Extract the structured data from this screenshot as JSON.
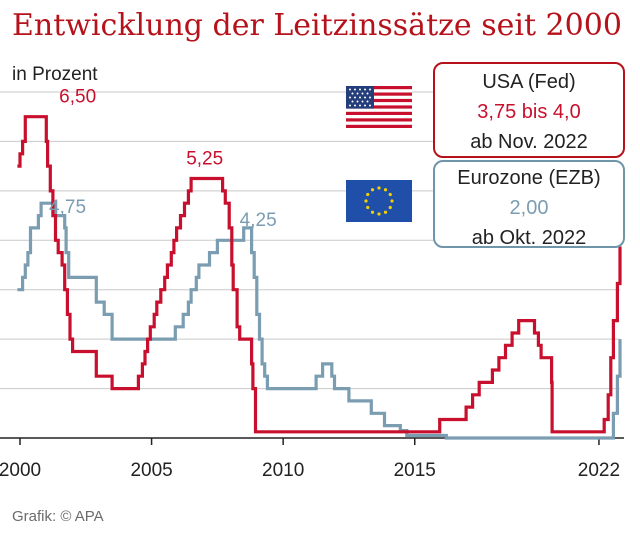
{
  "chart_data": {
    "type": "line",
    "title": "Entwicklung der Leitzinssätze seit 2000",
    "ylabel": "in Prozent",
    "source": "Grafik: © APA",
    "xlim": [
      2000,
      2022.8
    ],
    "ylim": [
      0,
      7
    ],
    "grid": true,
    "x_ticks": [
      2000,
      2005,
      2010,
      2015,
      2022
    ],
    "series": [
      {
        "name": "USA (Fed)",
        "color": "#c8102e",
        "points": [
          [
            1999.9,
            5.5
          ],
          [
            2000.0,
            5.75
          ],
          [
            2000.1,
            6.0
          ],
          [
            2000.2,
            6.5
          ],
          [
            2000.7,
            6.5
          ],
          [
            2001.0,
            6.0
          ],
          [
            2001.05,
            5.5
          ],
          [
            2001.15,
            5.0
          ],
          [
            2001.25,
            4.5
          ],
          [
            2001.35,
            4.0
          ],
          [
            2001.45,
            3.75
          ],
          [
            2001.6,
            3.5
          ],
          [
            2001.7,
            3.0
          ],
          [
            2001.8,
            2.5
          ],
          [
            2001.9,
            2.0
          ],
          [
            2002.0,
            1.75
          ],
          [
            2002.9,
            1.25
          ],
          [
            2003.5,
            1.0
          ],
          [
            2004.5,
            1.25
          ],
          [
            2004.65,
            1.5
          ],
          [
            2004.75,
            1.75
          ],
          [
            2004.85,
            2.0
          ],
          [
            2004.95,
            2.25
          ],
          [
            2005.1,
            2.5
          ],
          [
            2005.2,
            2.75
          ],
          [
            2005.35,
            3.0
          ],
          [
            2005.5,
            3.25
          ],
          [
            2005.6,
            3.5
          ],
          [
            2005.75,
            3.75
          ],
          [
            2005.85,
            4.0
          ],
          [
            2005.95,
            4.25
          ],
          [
            2006.1,
            4.5
          ],
          [
            2006.25,
            4.75
          ],
          [
            2006.4,
            5.0
          ],
          [
            2006.5,
            5.25
          ],
          [
            2007.7,
            5.0
          ],
          [
            2007.8,
            4.75
          ],
          [
            2007.95,
            4.25
          ],
          [
            2008.05,
            3.5
          ],
          [
            2008.1,
            3.0
          ],
          [
            2008.25,
            2.25
          ],
          [
            2008.35,
            2.0
          ],
          [
            2008.8,
            1.5
          ],
          [
            2008.85,
            1.0
          ],
          [
            2008.95,
            0.125
          ],
          [
            2015.95,
            0.375
          ],
          [
            2016.95,
            0.625
          ],
          [
            2017.2,
            0.875
          ],
          [
            2017.45,
            1.125
          ],
          [
            2017.95,
            1.375
          ],
          [
            2018.2,
            1.625
          ],
          [
            2018.45,
            1.875
          ],
          [
            2018.7,
            2.125
          ],
          [
            2018.95,
            2.375
          ],
          [
            2019.55,
            2.125
          ],
          [
            2019.7,
            1.875
          ],
          [
            2019.8,
            1.625
          ],
          [
            2020.2,
            1.125
          ],
          [
            2020.22,
            0.125
          ],
          [
            2022.2,
            0.375
          ],
          [
            2022.35,
            0.875
          ],
          [
            2022.45,
            1.625
          ],
          [
            2022.55,
            2.375
          ],
          [
            2022.7,
            3.125
          ],
          [
            2022.8,
            3.875
          ]
        ]
      },
      {
        "name": "Eurozone (EZB)",
        "color": "#7a9db2",
        "points": [
          [
            1999.9,
            3.0
          ],
          [
            2000.1,
            3.25
          ],
          [
            2000.2,
            3.5
          ],
          [
            2000.3,
            3.75
          ],
          [
            2000.4,
            4.25
          ],
          [
            2000.7,
            4.5
          ],
          [
            2000.8,
            4.75
          ],
          [
            2001.35,
            4.5
          ],
          [
            2001.7,
            4.25
          ],
          [
            2001.75,
            3.75
          ],
          [
            2001.85,
            3.25
          ],
          [
            2002.9,
            2.75
          ],
          [
            2003.2,
            2.5
          ],
          [
            2003.5,
            2.0
          ],
          [
            2005.9,
            2.25
          ],
          [
            2006.2,
            2.5
          ],
          [
            2006.4,
            2.75
          ],
          [
            2006.5,
            3.0
          ],
          [
            2006.7,
            3.25
          ],
          [
            2006.8,
            3.5
          ],
          [
            2007.2,
            3.75
          ],
          [
            2007.5,
            4.0
          ],
          [
            2008.5,
            4.25
          ],
          [
            2008.8,
            3.75
          ],
          [
            2008.9,
            3.25
          ],
          [
            2009.0,
            2.5
          ],
          [
            2009.1,
            2.0
          ],
          [
            2009.2,
            1.5
          ],
          [
            2009.3,
            1.25
          ],
          [
            2009.4,
            1.0
          ],
          [
            2011.25,
            1.25
          ],
          [
            2011.5,
            1.5
          ],
          [
            2011.85,
            1.25
          ],
          [
            2011.95,
            1.0
          ],
          [
            2012.5,
            0.75
          ],
          [
            2013.35,
            0.5
          ],
          [
            2013.85,
            0.25
          ],
          [
            2014.45,
            0.15
          ],
          [
            2014.7,
            0.05
          ],
          [
            2016.2,
            0.0
          ],
          [
            2022.55,
            0.5
          ],
          [
            2022.7,
            1.25
          ],
          [
            2022.8,
            2.0
          ]
        ]
      }
    ],
    "annotations": [
      {
        "text": "6,50",
        "series": "USA (Fed)",
        "x": 2000.5,
        "y": 6.5
      },
      {
        "text": "5,25",
        "series": "USA (Fed)",
        "x": 2007.0,
        "y": 5.25
      },
      {
        "text": "4,75",
        "series": "Eurozone (EZB)",
        "x": 2000.8,
        "y": 4.75
      },
      {
        "text": "4,25",
        "series": "Eurozone (EZB)",
        "x": 2008.5,
        "y": 4.25
      }
    ],
    "legend": {
      "position": "top-right",
      "usa": {
        "country": "USA (Fed)",
        "rate": "3,75 bis 4,0",
        "since": "ab Nov. 2022",
        "flag": "us-flag"
      },
      "eu": {
        "country": "Eurozone (EZB)",
        "rate": "2,00",
        "since": "ab Okt. 2022",
        "flag": "eu-flag"
      }
    }
  }
}
